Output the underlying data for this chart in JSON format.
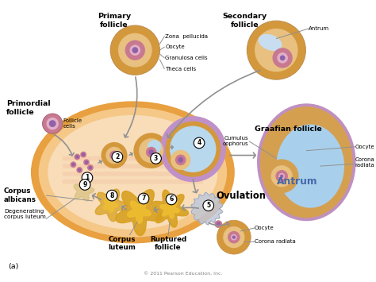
{
  "bg_color": "#ffffff",
  "copyright": "© 2011 Pearson Education, Inc.",
  "colors": {
    "ovary_outer": "#e8a040",
    "ovary_inner": "#f5c888",
    "ovary_core": "#f8ddb8",
    "pink_stripe": "#f0b8a0",
    "primordial_shell": "#c87890",
    "primordial_mid": "#e0b0c8",
    "primordial_nucleus": "#9060a8",
    "follicle_tan_outer": "#d4983c",
    "follicle_tan_mid": "#e8c080",
    "follicle_pink_shell": "#c87890",
    "follicle_pink_mid": "#e0b0c0",
    "antrum_blue": "#b8d8ee",
    "antrum_blue2": "#c8e0f0",
    "corpus_lut": "#d8a020",
    "corpus_lut_light": "#f0c030",
    "white": "#ffffff",
    "arrow_gray": "#909090",
    "purple_shell": "#c090c8",
    "ovul_stalk": "#c0c8d8",
    "secondary_antrum": "#c8ddf0",
    "graafian_purple": "#c090c0",
    "graafian_tan": "#d4a050",
    "graafian_blue": "#a8d0ec"
  },
  "labels": {
    "primordial_follicle": "Primordial\nfollicle",
    "follicle_cells": "Follicle\ncells",
    "primary_follicle": "Primary\nfollicle",
    "zona_pellucida": "Zona  pellucida",
    "oocyte": "Oocyte",
    "granulosa_cells": "Granulosa cells",
    "theca_cells": "Theca cells",
    "secondary_follicle": "Secondary\nfollicle",
    "antrum_secondary": "Antrum",
    "corpus_albicans": "Corpus\nalbicans",
    "degenerating_corpus": "Degenerating\ncorpus luteum",
    "corpus_luteum": "Corpus\nluteum",
    "ruptured_follicle": "Ruptured\nfollicle",
    "ovulation": "Ovulation",
    "cumulus_oophorus": "Cumulus\noophorus",
    "graafian_follicle": "Graafian follicle",
    "oocyte_gr": "Oocyte",
    "corona_radiata_gr": "Corona\nradiata",
    "antrum_gr": "Antrum",
    "oocyte_bot": "Oocyte",
    "corona_radiata_bot": "Corona radiata",
    "label_a": "(a)"
  }
}
